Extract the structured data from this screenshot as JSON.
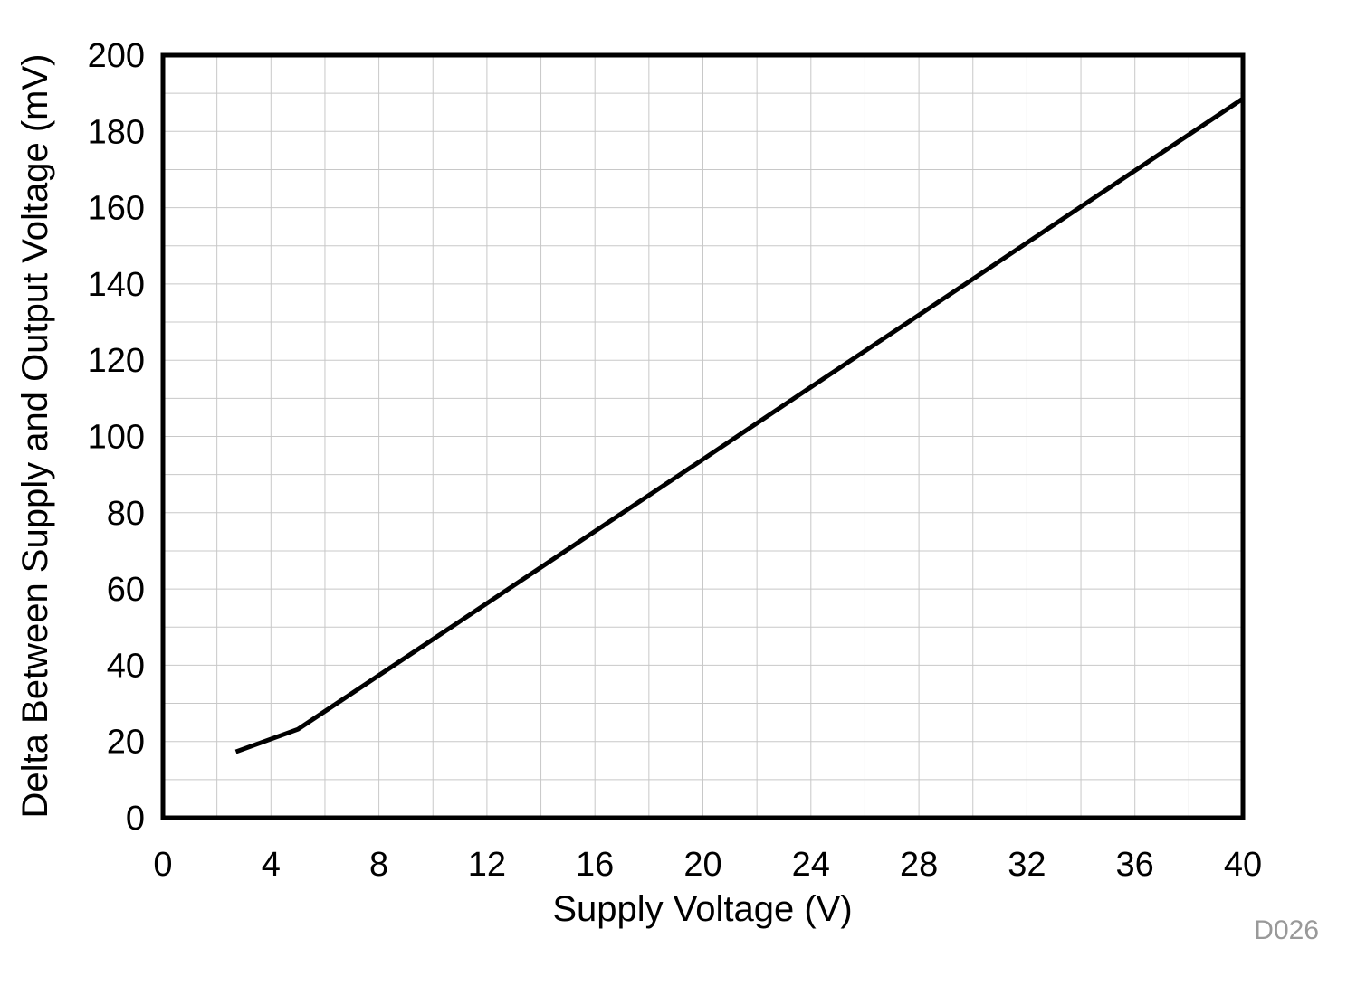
{
  "chart_data": {
    "type": "line",
    "title": "",
    "xlabel": "Supply Voltage (V)",
    "ylabel": "Delta Between Supply and Output Voltage (mV)",
    "xlim": [
      0,
      40
    ],
    "ylim": [
      0,
      200
    ],
    "xticks": [
      0,
      4,
      8,
      12,
      16,
      20,
      24,
      28,
      32,
      36,
      40
    ],
    "yticks": [
      0,
      20,
      40,
      60,
      80,
      100,
      120,
      140,
      160,
      180,
      200
    ],
    "grid": true,
    "minor_grid_x_step": 2,
    "minor_grid_y_step": 10,
    "series": [
      {
        "name": "Delta",
        "color": "#000000",
        "x": [
          2.7,
          5,
          10,
          15,
          20,
          25,
          30,
          35,
          40
        ],
        "y": [
          17.3,
          23.2,
          46.8,
          70.4,
          94.0,
          117.7,
          141.3,
          165.0,
          188.6
        ]
      }
    ],
    "annotation": "D026"
  }
}
